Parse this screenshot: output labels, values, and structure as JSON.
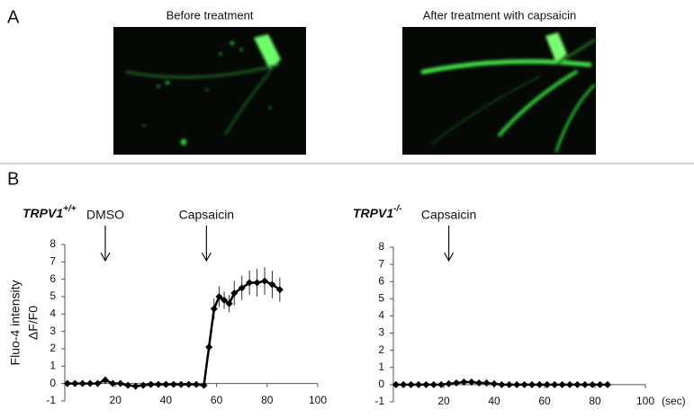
{
  "panel_labels": [
    "A",
    "B"
  ],
  "images": [
    {
      "title": "Before treatment"
    },
    {
      "title": "After treatment with capsaicin"
    }
  ],
  "chart_data": [
    {
      "type": "line",
      "title": "TRPV1",
      "title_superscript": "+/+",
      "y_label": [
        "Fluo-4 intensity",
        "ΔF/F0"
      ],
      "x": [
        1,
        4,
        7,
        10,
        13,
        16,
        19,
        22,
        25,
        28,
        31,
        34,
        37,
        40,
        43,
        46,
        49,
        52,
        55,
        57,
        59,
        61,
        63,
        65,
        67,
        70,
        73,
        76,
        79,
        82,
        85
      ],
      "series": [
        {
          "color": "#000000",
          "values": [
            0,
            0,
            0,
            0,
            0,
            0.2,
            0,
            0,
            -0.1,
            -0.15,
            -0.1,
            -0.05,
            -0.05,
            -0.05,
            -0.05,
            -0.05,
            -0.05,
            -0.05,
            -0.1,
            2.1,
            4.3,
            5.0,
            4.8,
            4.6,
            5.2,
            5.5,
            5.8,
            5.8,
            5.9,
            5.7,
            5.4
          ],
          "errors": [
            0,
            0,
            0,
            0,
            0,
            0.1,
            0,
            0,
            0.1,
            0.1,
            0.1,
            0.05,
            0.05,
            0.05,
            0.05,
            0.05,
            0.05,
            0.05,
            0.1,
            0.3,
            0.6,
            0.6,
            0.5,
            0.5,
            0.7,
            0.7,
            0.7,
            0.8,
            0.8,
            0.8,
            0.7
          ]
        }
      ],
      "xlim": [
        0,
        100
      ],
      "xticks": [
        20,
        40,
        60,
        80,
        100
      ],
      "ylim": [
        -1,
        8
      ],
      "yticks": [
        -1,
        0,
        1,
        2,
        3,
        4,
        5,
        6,
        7,
        8
      ],
      "annotations": [
        {
          "text": "DMSO",
          "x": 16
        },
        {
          "text": "Capsaicin",
          "x": 56
        }
      ]
    },
    {
      "type": "line",
      "title": "TRPV1",
      "title_superscript": "-/-",
      "x_unit": "(sec)",
      "x": [
        1,
        4,
        7,
        10,
        13,
        16,
        19,
        22,
        25,
        28,
        31,
        34,
        37,
        40,
        43,
        46,
        49,
        52,
        55,
        58,
        61,
        64,
        67,
        70,
        73,
        76,
        79,
        82,
        85
      ],
      "series": [
        {
          "color": "#000000",
          "values": [
            0,
            0,
            0,
            0,
            0,
            0,
            0,
            0.05,
            0.1,
            0.15,
            0.15,
            0.1,
            0.1,
            0.05,
            0,
            0,
            0,
            0,
            0,
            0,
            0,
            0,
            0,
            0,
            0,
            0,
            0,
            0,
            0
          ]
        }
      ],
      "xlim": [
        0,
        100
      ],
      "xticks": [
        20,
        40,
        60,
        80,
        100
      ],
      "ylim": [
        -1,
        8
      ],
      "yticks": [
        -1,
        0,
        1,
        2,
        3,
        4,
        5,
        6,
        7,
        8
      ],
      "annotations": [
        {
          "text": "Capsaicin",
          "x": 22
        }
      ]
    }
  ]
}
